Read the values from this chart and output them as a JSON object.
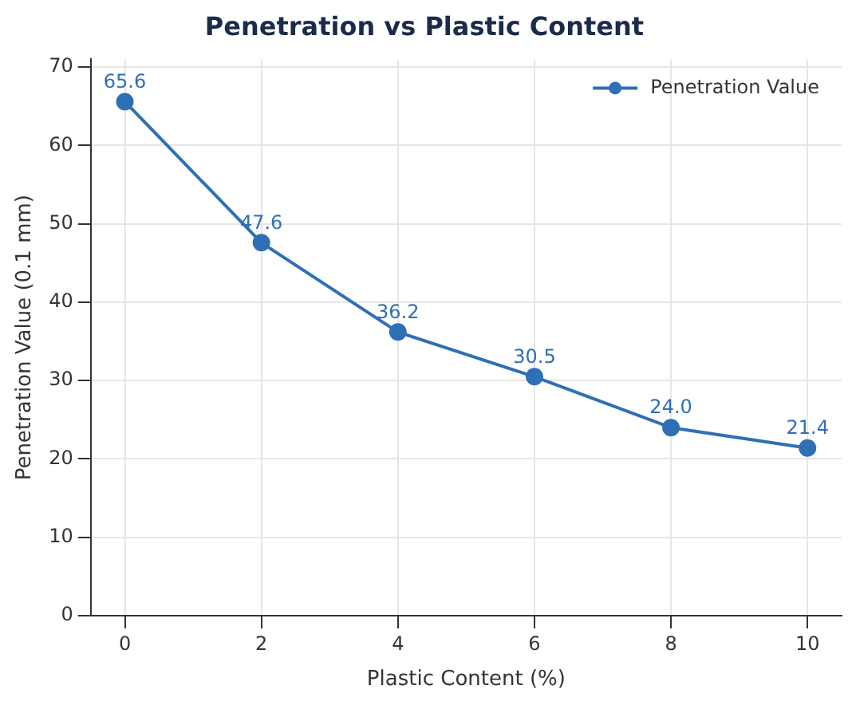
{
  "chart_data": {
    "type": "line",
    "title": "Penetration vs Plastic Content",
    "xlabel": "Plastic Content (%)",
    "ylabel": "Penetration Value (0.1 mm)",
    "x": [
      0,
      2,
      4,
      6,
      8,
      10
    ],
    "series": [
      {
        "name": "Penetration Value",
        "color": "#2f6fb5",
        "values": [
          65.6,
          47.6,
          36.2,
          30.5,
          24.0,
          21.4
        ],
        "value_labels": [
          "65.6",
          "47.6",
          "36.2",
          "30.5",
          "24.0",
          "21.4"
        ]
      }
    ],
    "xlim": [
      -0.5,
      10.5
    ],
    "xticks": [
      0,
      2,
      4,
      6,
      8,
      10
    ],
    "ylim": [
      0,
      71
    ],
    "yticks": [
      0,
      10,
      20,
      30,
      40,
      50,
      60,
      70
    ],
    "grid": true,
    "legend": "top right",
    "marker": "circle",
    "line_style": "solid"
  }
}
